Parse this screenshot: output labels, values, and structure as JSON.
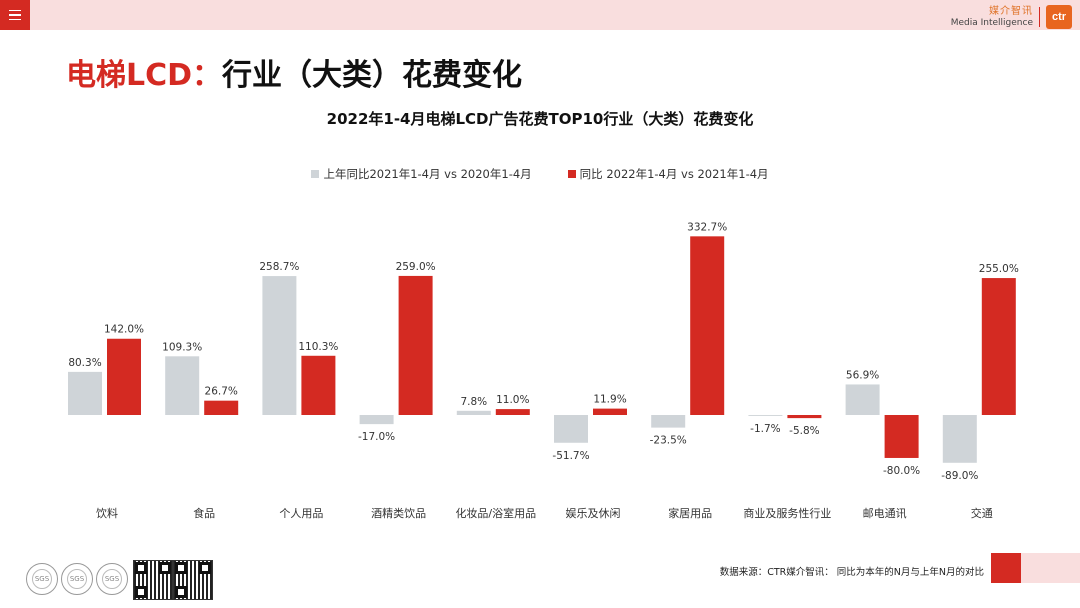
{
  "header": {
    "menu_icon": "hamburger-icon",
    "brand_cn": "媒介智讯",
    "brand_en": "Media Intelligence",
    "brand_logo": "ctr"
  },
  "page_title": {
    "red": "电梯LCD：",
    "black": "行业（大类）花费变化"
  },
  "colors": {
    "gray_series": "#cfd4d8",
    "red_series": "#d42a22",
    "accent": "#d42a22",
    "pink": "#f9dede"
  },
  "chart_data": {
    "type": "bar",
    "title": "2022年1-4月电梯LCD广告花费TOP10行业（大类）花费变化",
    "categories": [
      "饮料",
      "食品",
      "个人用品",
      "酒精类饮品",
      "化妆品/浴室用品",
      "娱乐及休闲",
      "家居用品",
      "商业及服务性行业",
      "邮电通讯",
      "交通"
    ],
    "series": [
      {
        "name": "上年同比2021年1-4月 vs 2020年1-4月",
        "values": [
          80.3,
          109.3,
          258.7,
          -17.0,
          7.8,
          -51.7,
          -23.5,
          -1.7,
          56.9,
          -89.0
        ]
      },
      {
        "name": "同比 2022年1-4月 vs 2021年1-4月",
        "values": [
          142.0,
          26.7,
          110.3,
          259.0,
          11.0,
          11.9,
          332.7,
          -5.8,
          -80.0,
          255.0
        ]
      }
    ],
    "value_suffix": "%",
    "ylim": [
      -100,
      340
    ],
    "grid": false,
    "legend_position": "top-center"
  },
  "footer": {
    "source": "数据来源：CTR媒介智讯： 同比为本年的N月与上年N月的对比",
    "seal_label": "SGS"
  }
}
